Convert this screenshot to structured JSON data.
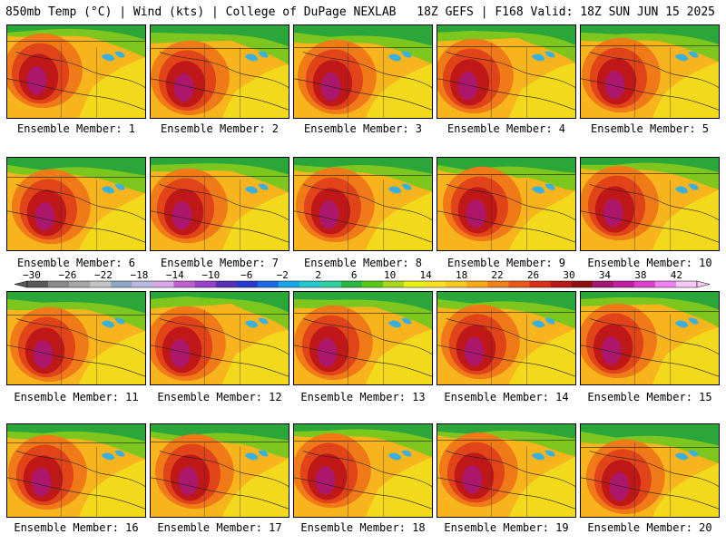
{
  "header": {
    "left": "850mb Temp (°C) | Wind (kts) | College of DuPage NEXLAB",
    "right": "18Z GEFS | F168 Valid: 18Z SUN JUN 15 2025"
  },
  "panels": [
    {
      "label": "Ensemble Member: 1"
    },
    {
      "label": "Ensemble Member: 2"
    },
    {
      "label": "Ensemble Member: 3"
    },
    {
      "label": "Ensemble Member: 4"
    },
    {
      "label": "Ensemble Member: 5"
    },
    {
      "label": "Ensemble Member: 6"
    },
    {
      "label": "Ensemble Member: 7"
    },
    {
      "label": "Ensemble Member: 8"
    },
    {
      "label": "Ensemble Member: 9"
    },
    {
      "label": "Ensemble Member: 10"
    },
    {
      "label": "Ensemble Member: 11"
    },
    {
      "label": "Ensemble Member: 12"
    },
    {
      "label": "Ensemble Member: 13"
    },
    {
      "label": "Ensemble Member: 14"
    },
    {
      "label": "Ensemble Member: 15"
    },
    {
      "label": "Ensemble Member: 16"
    },
    {
      "label": "Ensemble Member: 17"
    },
    {
      "label": "Ensemble Member: 18"
    },
    {
      "label": "Ensemble Member: 19"
    },
    {
      "label": "Ensemble Member: 20"
    }
  ],
  "colorbar": {
    "ticks": [
      "-30",
      "-26",
      "-22",
      "-18",
      "-14",
      "-10",
      "-6",
      "-2",
      "2",
      "6",
      "10",
      "14",
      "18",
      "22",
      "26",
      "30",
      "34",
      "38",
      "42"
    ],
    "colors": [
      "#5a5a5a",
      "#8a8a8a",
      "#a6a6a6",
      "#c4c4c4",
      "#8fa8c8",
      "#b8b8e0",
      "#d8a8e8",
      "#c060d0",
      "#9a40c8",
      "#5a30b8",
      "#2a3ad0",
      "#1a6ae8",
      "#18a6e8",
      "#20c8d0",
      "#30d0a0",
      "#28b840",
      "#58c818",
      "#a8d818",
      "#e8f010",
      "#f8e020",
      "#f8c820",
      "#f8a818",
      "#f08018",
      "#e85818",
      "#d83018",
      "#b81818",
      "#901010",
      "#a01870",
      "#c020a0",
      "#e040d0",
      "#f080f0",
      "#f8c8f8"
    ]
  },
  "map_colors": {
    "cold": "#2aa63a",
    "cool": "#7cc61e",
    "mild": "#f0e21c",
    "warm": "#f8b41c",
    "hot": "#f07a18",
    "hotter": "#e04418",
    "veryhot": "#c01818",
    "extreme": "#a8187a",
    "lake": "#38b0e0"
  }
}
